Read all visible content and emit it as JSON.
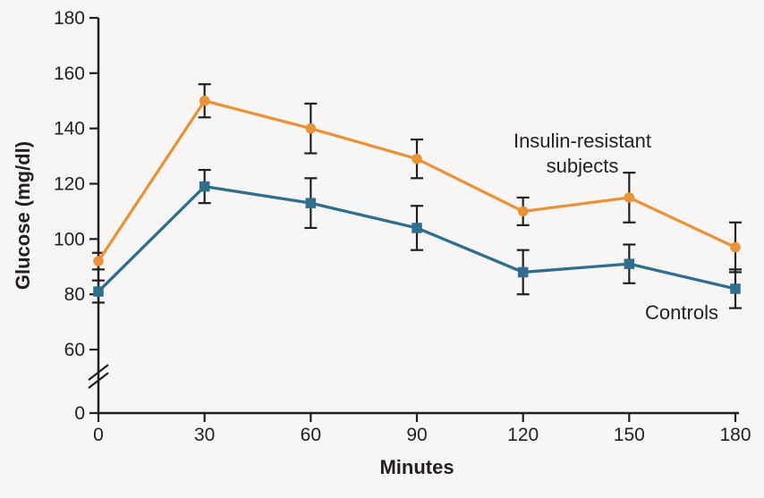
{
  "figure": {
    "background_color": "#F7F6F4",
    "axis_color": "#231F20",
    "text_color": "#231F20",
    "error_bar_color": "#231F20"
  },
  "chart_data": {
    "type": "line",
    "title": "",
    "xlabel": "Minutes",
    "ylabel": "Glucose (mg/dl)",
    "x": [
      0,
      30,
      60,
      90,
      120,
      150,
      180
    ],
    "x_tick_labels": [
      "0",
      "30",
      "60",
      "90",
      "120",
      "150",
      "180"
    ],
    "y_ticks": [
      0,
      60,
      80,
      100,
      120,
      140,
      160,
      180
    ],
    "y_tick_labels": [
      "0",
      "60",
      "80",
      "100",
      "120",
      "140",
      "160",
      "180"
    ],
    "ylim": [
      0,
      180
    ],
    "axis_break_between": [
      0,
      60
    ],
    "grid": false,
    "legend_position": "inline-annotations",
    "error_bars": true,
    "series": [
      {
        "name": "Insulin-resistant subjects",
        "annotation_lines": [
          "Insulin-resistant",
          "subjects"
        ],
        "marker": "circle",
        "color": "#E8923A",
        "values": [
          92,
          150,
          140,
          129,
          110,
          115,
          97
        ],
        "error": [
          3,
          6,
          9,
          7,
          5,
          9,
          9
        ]
      },
      {
        "name": "Controls",
        "annotation_lines": [
          "Controls"
        ],
        "marker": "square",
        "color": "#2F6E8C",
        "values": [
          81,
          119,
          113,
          104,
          88,
          91,
          82
        ],
        "error": [
          4,
          6,
          9,
          8,
          8,
          7,
          7
        ]
      }
    ]
  }
}
